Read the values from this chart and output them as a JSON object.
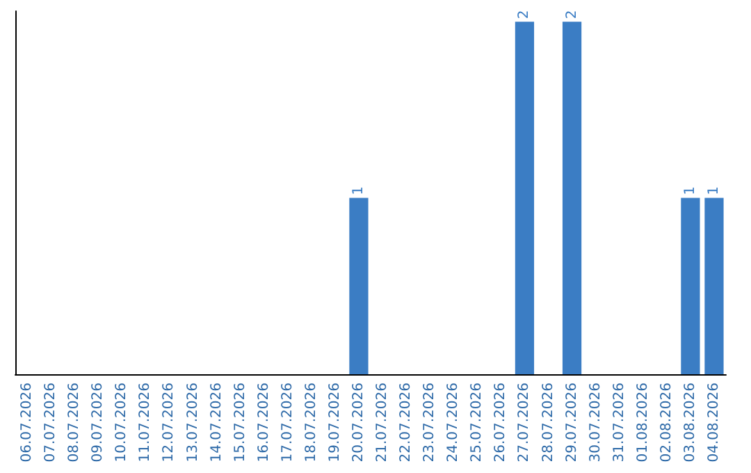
{
  "chart_data": {
    "type": "bar",
    "categories": [
      "06.07.2026",
      "07.07.2026",
      "08.07.2026",
      "09.07.2026",
      "10.07.2026",
      "11.07.2026",
      "12.07.2026",
      "13.07.2026",
      "14.07.2026",
      "15.07.2026",
      "16.07.2026",
      "17.07.2026",
      "18.07.2026",
      "19.07.2026",
      "20.07.2026",
      "21.07.2026",
      "22.07.2026",
      "23.07.2026",
      "24.07.2026",
      "25.07.2026",
      "26.07.2026",
      "27.07.2026",
      "28.07.2026",
      "29.07.2026",
      "30.07.2026",
      "31.07.2026",
      "01.08.2026",
      "02.08.2026",
      "03.08.2026",
      "04.08.2026"
    ],
    "values": [
      null,
      null,
      null,
      null,
      null,
      null,
      null,
      null,
      null,
      null,
      null,
      null,
      null,
      null,
      1,
      null,
      null,
      null,
      null,
      null,
      null,
      2,
      null,
      2,
      null,
      null,
      null,
      null,
      1,
      1
    ],
    "data_labels": true,
    "color": "#3b7dc4",
    "tick_labels": "x",
    "grid": false
  }
}
